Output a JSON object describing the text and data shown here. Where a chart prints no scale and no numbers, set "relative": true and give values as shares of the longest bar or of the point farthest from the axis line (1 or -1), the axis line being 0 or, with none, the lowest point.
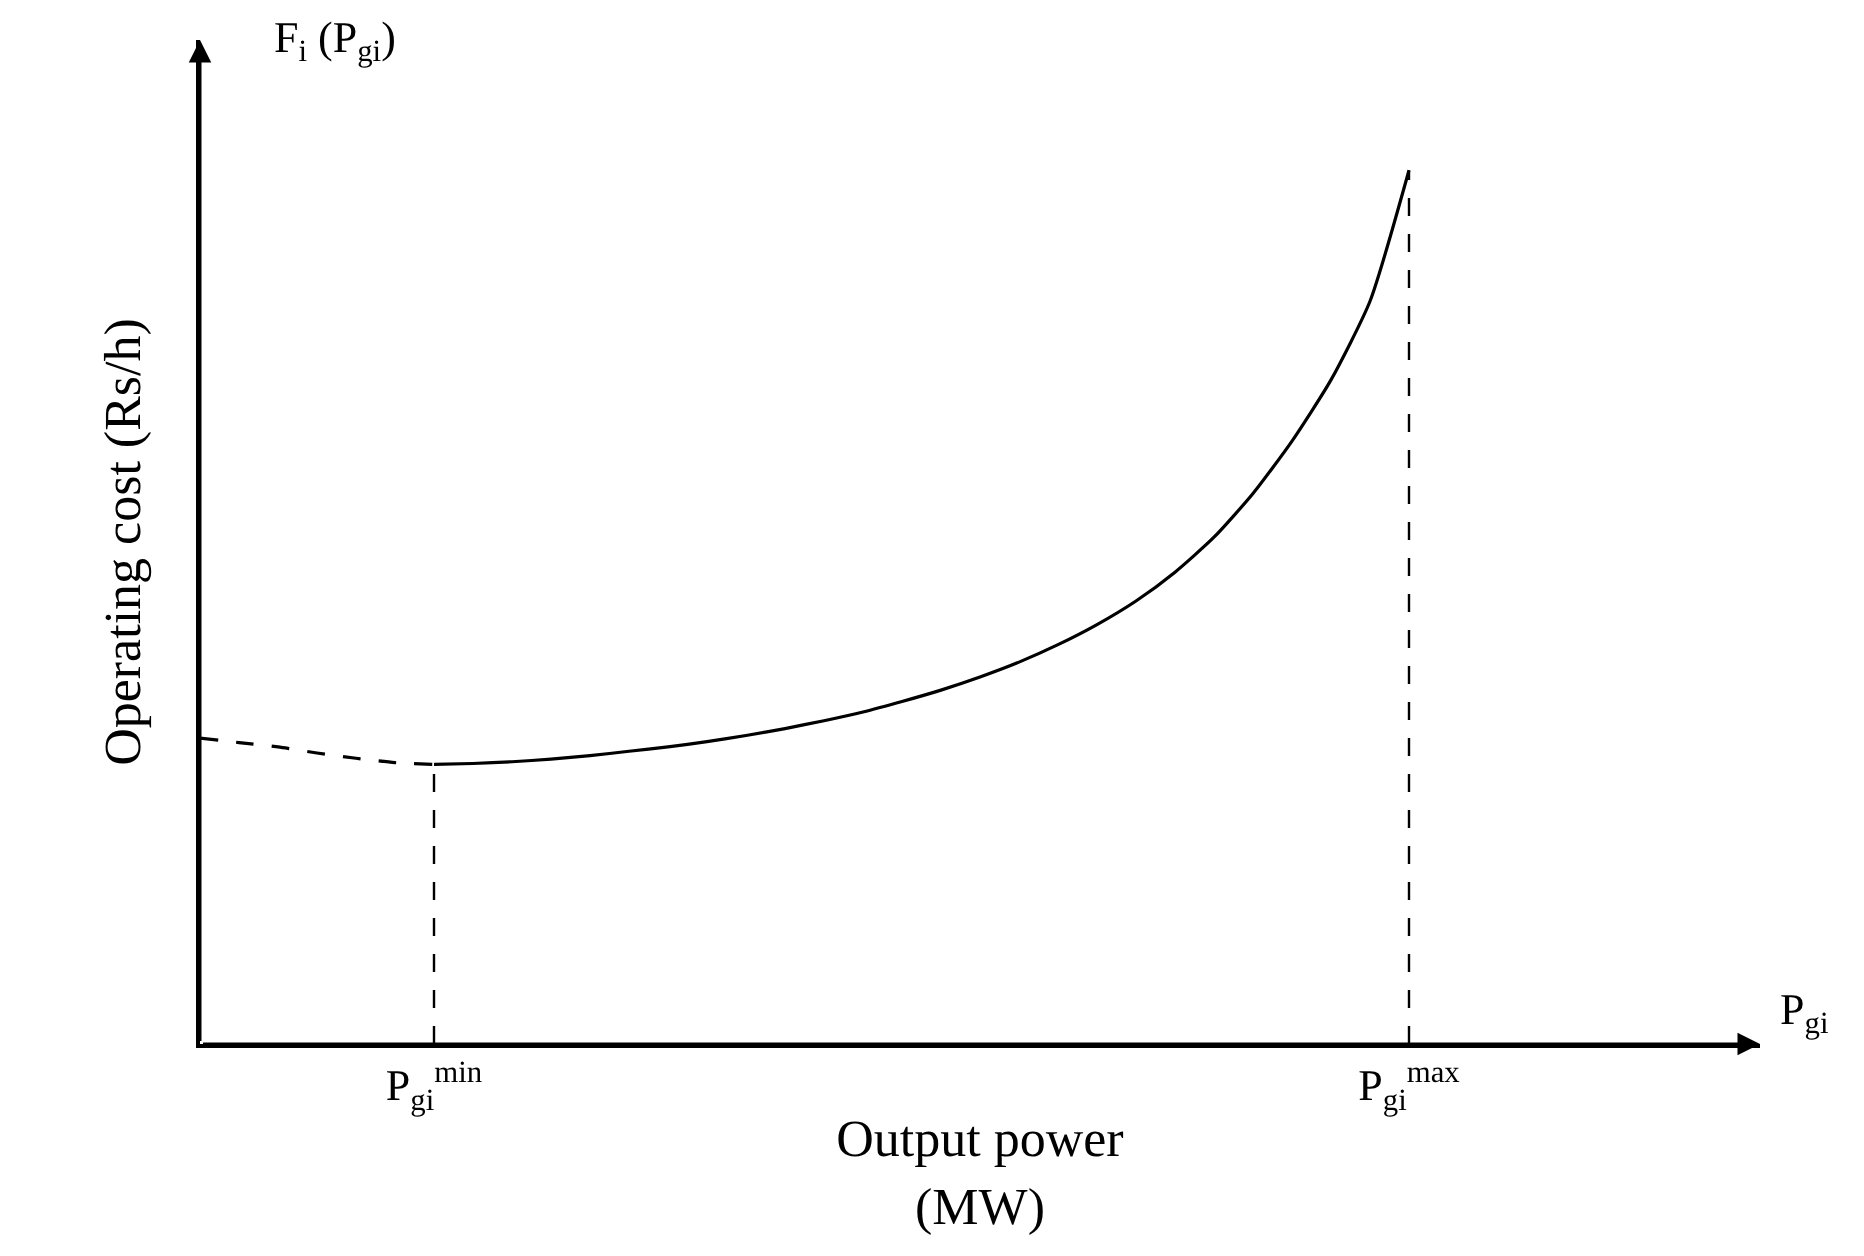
{
  "chart_data": {
    "type": "line",
    "relative": true,
    "xlabel": "Output power\n(MW)",
    "ylabel": "Operating cost (Rs/h)",
    "annotations": [
      "F$_{i}$ (P$_{gi}$)",
      "P$_{gi}$"
    ],
    "categories": [
      null,
      null,
      null,
      null,
      null,
      null,
      "P$_{gi}$$^{min}$",
      null,
      null,
      null,
      null,
      null,
      null,
      null,
      null,
      null,
      null,
      null,
      null,
      null,
      null,
      null,
      null,
      null,
      null,
      null,
      null,
      null,
      null,
      null,
      null,
      "P$_{gi}$$^{max}$",
      null,
      null,
      null,
      null,
      null,
      null,
      null,
      null,
      null
    ],
    "series": [
      {
        "color": "#000000",
        "line_style": "dashed",
        "values": [
          0.35,
          0.345,
          0.34,
          0.333,
          0.327,
          0.322,
          0.32,
          null,
          null,
          null,
          null,
          null,
          null,
          null,
          null,
          null,
          null,
          null,
          null,
          null,
          null,
          null,
          null,
          null,
          null,
          null,
          null,
          null,
          null,
          null,
          null,
          null,
          null,
          null,
          null,
          null,
          null,
          null,
          null,
          null,
          null
        ]
      },
      {
        "color": "#000000",
        "line_style": "solid",
        "values": [
          null,
          null,
          null,
          null,
          null,
          null,
          0.32,
          0.321,
          0.323,
          0.326,
          0.33,
          0.335,
          0.34,
          0.346,
          0.353,
          0.361,
          0.37,
          0.38,
          0.392,
          0.405,
          0.42,
          0.437,
          0.457,
          0.48,
          0.507,
          0.54,
          0.58,
          0.63,
          0.69,
          0.76,
          0.85,
          1,
          null,
          null,
          null,
          null,
          null,
          null,
          null,
          null,
          null
        ]
      }
    ],
    "ref_lines": [
      {
        "axis": "x",
        "value": "P$_{gi}$$^{min}$",
        "line_style": "dashed"
      },
      {
        "axis": "x",
        "value": "P$_{gi}$$^{max}$",
        "line_style": "dashed"
      }
    ],
    "marker": "none"
  }
}
